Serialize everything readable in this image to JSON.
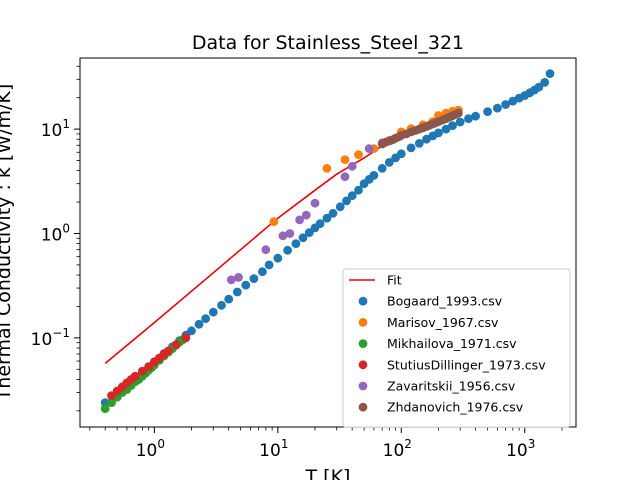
{
  "chart_data": {
    "type": "scatter",
    "title": "Data for Stainless_Steel_321",
    "xlabel": "T [K]",
    "ylabel": "Thermal Conductivity : k [W/m/K]",
    "xscale": "log",
    "yscale": "log",
    "xlim": [
      0.25,
      2600
    ],
    "ylim": [
      0.014,
      48
    ],
    "x_ticks": [
      1,
      10,
      100,
      1000
    ],
    "x_tick_labels": [
      "10",
      "10",
      "10",
      "10"
    ],
    "x_tick_exponents": [
      "0",
      "1",
      "2",
      "3"
    ],
    "y_ticks": [
      0.1,
      1,
      10
    ],
    "y_tick_labels": [
      "10",
      "10",
      "10"
    ],
    "y_tick_exponents": [
      "−1",
      "0",
      "1"
    ],
    "grid": false,
    "legend_position": "lower-right",
    "fit": {
      "name": "Fit",
      "color": "#e8000b",
      "points": [
        [
          0.4,
          0.057
        ],
        [
          1,
          0.14
        ],
        [
          3,
          0.42
        ],
        [
          10,
          1.4
        ],
        [
          20,
          2.6
        ],
        [
          30,
          3.7
        ],
        [
          50,
          5.3
        ],
        [
          70,
          6.9
        ],
        [
          100,
          8.5
        ],
        [
          150,
          10.3
        ],
        [
          200,
          12.0
        ],
        [
          300,
          14.8
        ]
      ]
    },
    "series": [
      {
        "name": "Bogaard_1993.csv",
        "color": "#1f77b4",
        "points": [
          [
            0.4,
            0.024
          ],
          [
            0.5,
            0.03
          ],
          [
            0.6,
            0.036
          ],
          [
            0.7,
            0.042
          ],
          [
            0.8,
            0.047
          ],
          [
            0.9,
            0.053
          ],
          [
            1.0,
            0.058
          ],
          [
            1.1,
            0.064
          ],
          [
            1.2,
            0.071
          ],
          [
            1.4,
            0.082
          ],
          [
            1.6,
            0.094
          ],
          [
            1.8,
            0.106
          ],
          [
            2.0,
            0.117
          ],
          [
            2.3,
            0.135
          ],
          [
            2.6,
            0.153
          ],
          [
            3.0,
            0.176
          ],
          [
            3.5,
            0.205
          ],
          [
            4.0,
            0.235
          ],
          [
            4.7,
            0.275
          ],
          [
            5.5,
            0.32
          ],
          [
            6.4,
            0.37
          ],
          [
            7.5,
            0.43
          ],
          [
            8.5,
            0.5
          ],
          [
            10,
            0.58
          ],
          [
            12,
            0.69
          ],
          [
            14,
            0.8
          ],
          [
            16,
            0.91
          ],
          [
            18,
            1.02
          ],
          [
            20,
            1.13
          ],
          [
            22,
            1.24
          ],
          [
            25,
            1.4
          ],
          [
            28,
            1.56
          ],
          [
            32,
            1.8
          ],
          [
            36,
            2.05
          ],
          [
            40,
            2.3
          ],
          [
            45,
            2.6
          ],
          [
            50,
            3.0
          ],
          [
            55,
            3.3
          ],
          [
            60,
            3.6
          ],
          [
            70,
            4.2
          ],
          [
            80,
            4.8
          ],
          [
            90,
            5.3
          ],
          [
            100,
            5.8
          ],
          [
            120,
            6.6
          ],
          [
            140,
            7.3
          ],
          [
            160,
            8.0
          ],
          [
            180,
            8.6
          ],
          [
            200,
            9.2
          ],
          [
            230,
            10.0
          ],
          [
            260,
            10.8
          ],
          [
            300,
            11.7
          ],
          [
            350,
            12.6
          ],
          [
            400,
            13.3
          ],
          [
            500,
            14.7
          ],
          [
            600,
            15.9
          ],
          [
            700,
            17.2
          ],
          [
            800,
            18.5
          ],
          [
            900,
            19.8
          ],
          [
            1000,
            21.0
          ],
          [
            1100,
            22.3
          ],
          [
            1200,
            23.7
          ],
          [
            1300,
            25.2
          ],
          [
            1450,
            28.0
          ],
          [
            1600,
            34.0
          ]
        ]
      },
      {
        "name": "Marisov_1967.csv",
        "color": "#ff7f0e",
        "points": [
          [
            9.3,
            1.3
          ],
          [
            25,
            4.2
          ],
          [
            35,
            5.1
          ],
          [
            45,
            5.7
          ],
          [
            60,
            6.5
          ],
          [
            80,
            7.8
          ],
          [
            100,
            9.4
          ],
          [
            120,
            10.1
          ],
          [
            150,
            11.0
          ],
          [
            180,
            11.8
          ],
          [
            200,
            13.5
          ],
          [
            230,
            14.2
          ],
          [
            260,
            14.8
          ],
          [
            290,
            15.2
          ]
        ]
      },
      {
        "name": "Mikhailova_1971.csv",
        "color": "#2ca02c",
        "points": [
          [
            0.4,
            0.021
          ],
          [
            0.45,
            0.024
          ],
          [
            0.5,
            0.027
          ],
          [
            0.55,
            0.03
          ],
          [
            0.6,
            0.032
          ],
          [
            0.65,
            0.035
          ],
          [
            0.7,
            0.038
          ],
          [
            0.75,
            0.04
          ],
          [
            0.8,
            0.043
          ],
          [
            0.85,
            0.046
          ],
          [
            0.9,
            0.049
          ],
          [
            0.95,
            0.052
          ],
          [
            1.0,
            0.055
          ],
          [
            1.1,
            0.061
          ],
          [
            1.2,
            0.067
          ],
          [
            1.3,
            0.073
          ],
          [
            1.4,
            0.079
          ],
          [
            1.5,
            0.085
          ],
          [
            1.6,
            0.091
          ],
          [
            1.7,
            0.096
          ]
        ]
      },
      {
        "name": "StutiusDillinger_1973.csv",
        "color": "#d62728",
        "points": [
          [
            0.45,
            0.028
          ],
          [
            0.5,
            0.031
          ],
          [
            0.55,
            0.034
          ],
          [
            0.6,
            0.037
          ],
          [
            0.65,
            0.04
          ],
          [
            0.7,
            0.043
          ],
          [
            0.8,
            0.048
          ],
          [
            0.9,
            0.053
          ],
          [
            1.0,
            0.059
          ],
          [
            1.1,
            0.064
          ],
          [
            1.2,
            0.07
          ],
          [
            1.3,
            0.075
          ],
          [
            1.5,
            0.086
          ],
          [
            1.8,
            0.1
          ]
        ]
      },
      {
        "name": "Zavaritskii_1956.csv",
        "color": "#9467bd",
        "points": [
          [
            4.2,
            0.36
          ],
          [
            4.8,
            0.38
          ],
          [
            8,
            0.7
          ],
          [
            11,
            0.95
          ],
          [
            12.5,
            1.0
          ],
          [
            15,
            1.35
          ],
          [
            17,
            1.5
          ],
          [
            20,
            1.95
          ],
          [
            35,
            3.5
          ],
          [
            40,
            4.4
          ],
          [
            55,
            6.5
          ],
          [
            70,
            7.4
          ]
        ]
      },
      {
        "name": "Zhdanovich_1976.csv",
        "color": "#8c564b",
        "points": [
          [
            70,
            7.2
          ],
          [
            75,
            7.5
          ],
          [
            80,
            7.7
          ],
          [
            85,
            7.9
          ],
          [
            90,
            8.2
          ],
          [
            95,
            8.4
          ],
          [
            100,
            8.7
          ],
          [
            110,
            9.0
          ],
          [
            120,
            9.4
          ],
          [
            130,
            9.7
          ],
          [
            140,
            10.0
          ],
          [
            150,
            10.3
          ],
          [
            160,
            10.6
          ],
          [
            170,
            10.9
          ],
          [
            180,
            11.2
          ],
          [
            190,
            11.5
          ],
          [
            200,
            11.8
          ],
          [
            215,
            12.2
          ],
          [
            230,
            12.6
          ],
          [
            245,
            13.0
          ],
          [
            260,
            13.4
          ],
          [
            275,
            13.8
          ],
          [
            290,
            14.2
          ]
        ]
      }
    ]
  }
}
